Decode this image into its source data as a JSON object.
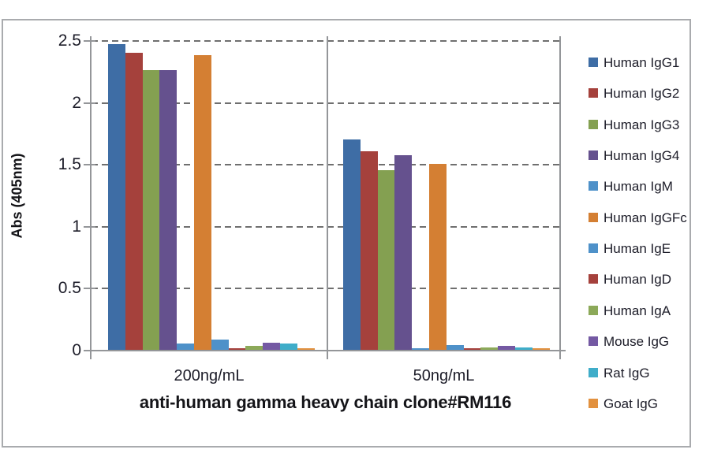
{
  "chart_data": {
    "type": "bar",
    "title": "",
    "xlabel": "anti-human gamma heavy chain clone#RM116",
    "ylabel": "Abs (405nm)",
    "categories": [
      "200ng/mL",
      "50ng/mL"
    ],
    "series": [
      {
        "name": "Human IgG1",
        "color": "#3e6da5",
        "pattern": "solid",
        "values": [
          2.47,
          1.7
        ]
      },
      {
        "name": "Human IgG2",
        "color": "#a5413c",
        "pattern": "solid",
        "values": [
          2.4,
          1.6
        ]
      },
      {
        "name": "Human IgG3",
        "color": "#84a051",
        "pattern": "solid",
        "values": [
          2.26,
          1.45
        ]
      },
      {
        "name": "Human IgG4",
        "color": "#65518e",
        "pattern": "solid",
        "values": [
          2.26,
          1.57
        ]
      },
      {
        "name": "Human IgM",
        "color": "#4e91c9",
        "pattern": "dotted",
        "values": [
          0.05,
          0.01
        ]
      },
      {
        "name": "Human IgGFc",
        "color": "#d47f33",
        "pattern": "solid",
        "values": [
          2.38,
          1.5
        ]
      },
      {
        "name": "Human IgE",
        "color": "#4e91c9",
        "pattern": "dotted",
        "values": [
          0.08,
          0.04
        ]
      },
      {
        "name": "Human IgD",
        "color": "#a5413c",
        "pattern": "solid",
        "values": [
          0.01,
          0.01
        ]
      },
      {
        "name": "Human IgA",
        "color": "#8ca959",
        "pattern": "dotted",
        "values": [
          0.03,
          0.02
        ]
      },
      {
        "name": "Mouse IgG",
        "color": "#7459a3",
        "pattern": "dotted",
        "values": [
          0.06,
          0.03
        ]
      },
      {
        "name": "Rat IgG",
        "color": "#3fadc9",
        "pattern": "solid",
        "values": [
          0.05,
          0.02
        ]
      },
      {
        "name": "Goat IgG",
        "color": "#e2913f",
        "pattern": "solid",
        "values": [
          0.01,
          0.01
        ]
      }
    ],
    "ylim": [
      0,
      2.5
    ],
    "yticks": [
      "0",
      "0.5",
      "1",
      "1.5",
      "2",
      "2.5"
    ],
    "grid": "horizontal-dashed",
    "legend_position": "right"
  },
  "colors": {
    "axis": "#949699",
    "gridline": "#6f6f6f",
    "frame": "#a9abae",
    "text": "#1c1c28"
  }
}
